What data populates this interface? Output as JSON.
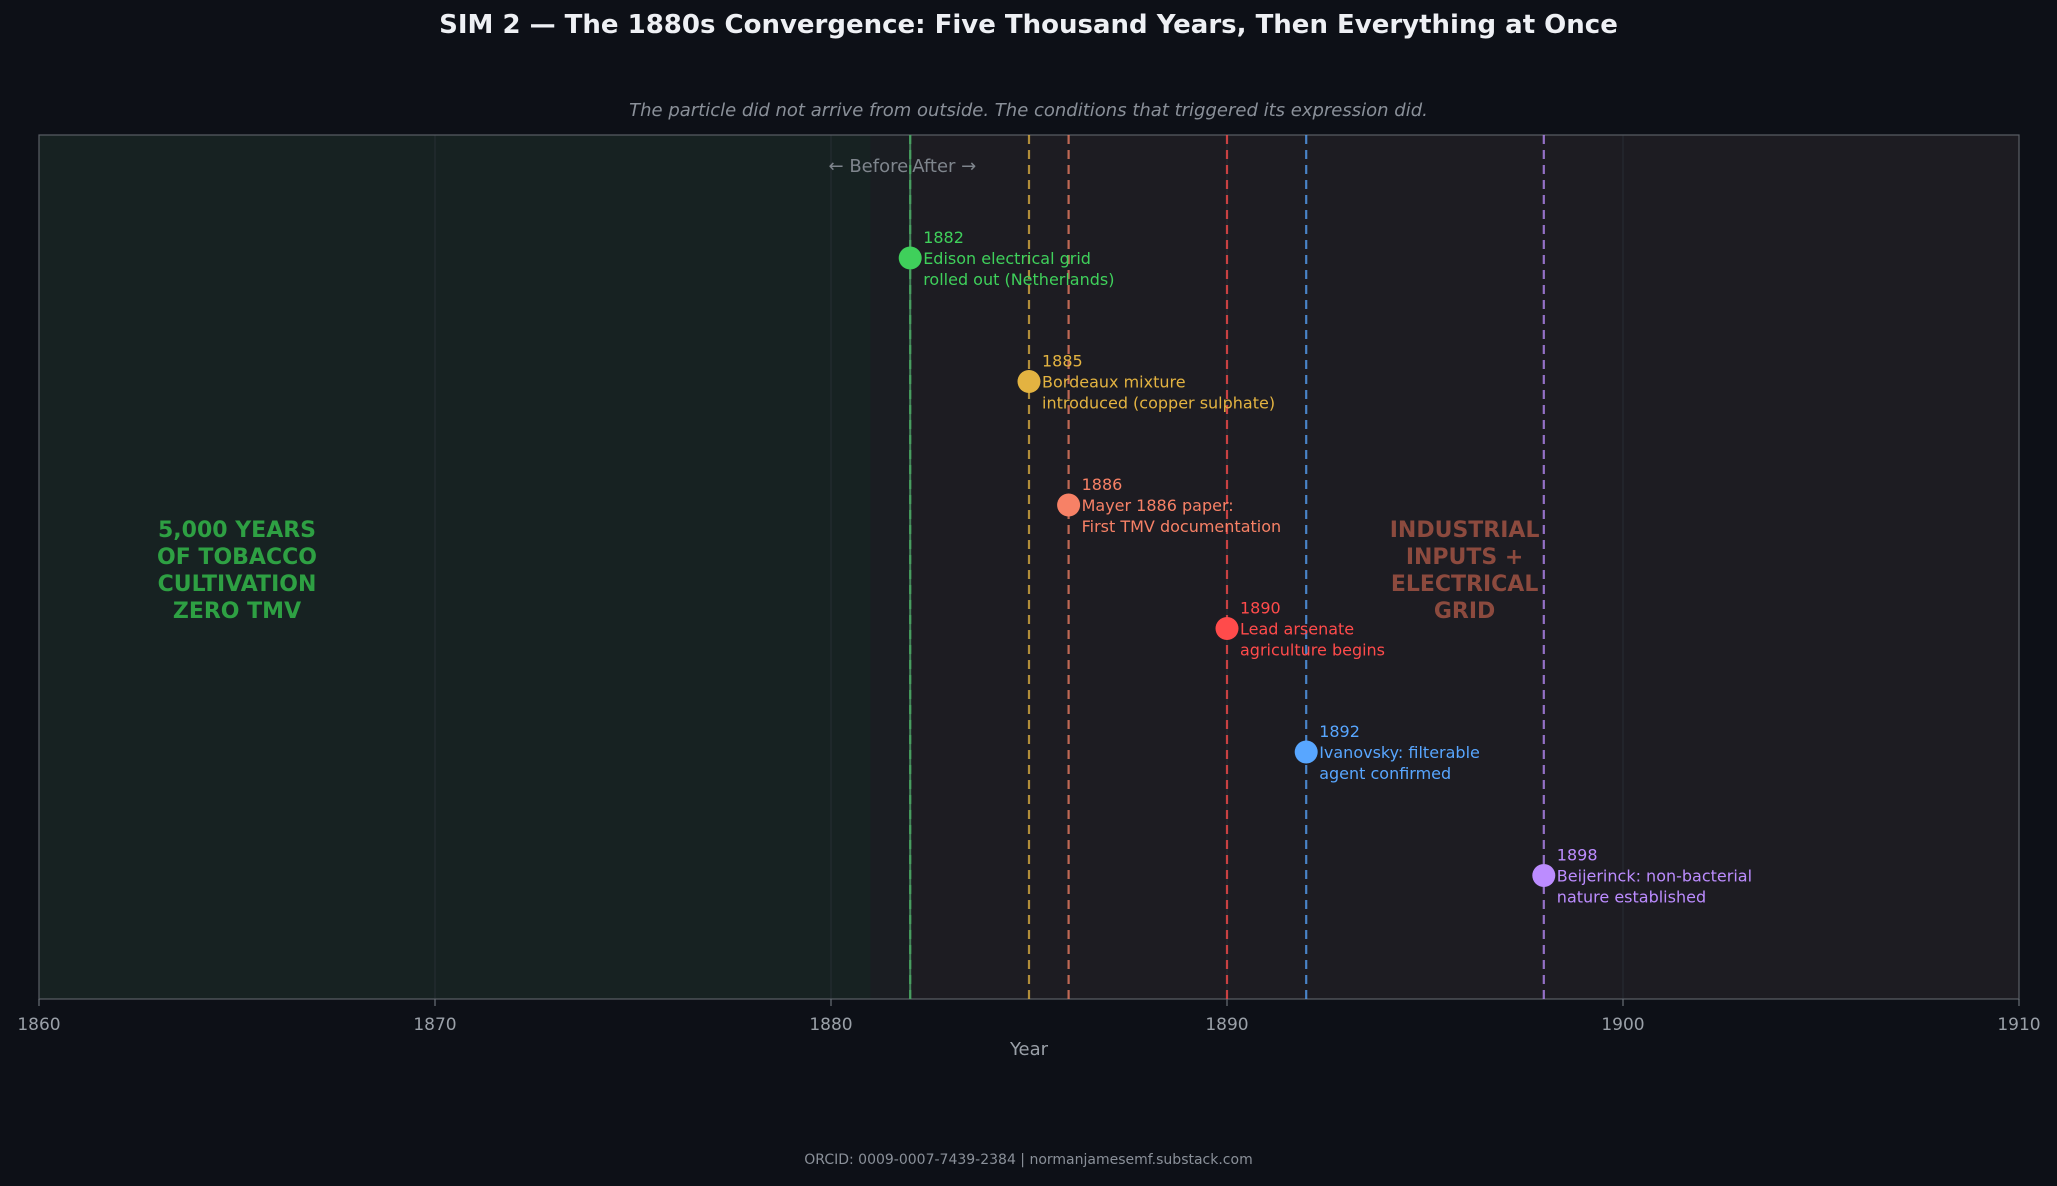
{
  "header": {
    "title": "SIM 2 — The 1880s Convergence: Five Thousand Years, Then Everything at Once",
    "subtitle": "The particle did not arrive from outside. The conditions that triggered its expression did."
  },
  "footer": {
    "text": "ORCID: 0009-0007-7439-2384  |  normanjamesemf.substack.com"
  },
  "colors": {
    "background": "#0d1017",
    "plot_background": "#1d1c22",
    "before_region": "#172222",
    "before_text": "#2ea043",
    "after_text": "#8c4a3e"
  },
  "chart_data": {
    "type": "scatter",
    "xlabel": "Year",
    "ylabel": "",
    "xlim": [
      1860,
      1910
    ],
    "x_ticks": [
      "1860",
      "1870",
      "1880",
      "1890",
      "1900",
      "1910"
    ],
    "grid": true,
    "divider": {
      "year": 1882,
      "before_label": "← Before",
      "after_label": "After →"
    },
    "regions": [
      {
        "start": 1860,
        "end": 1881,
        "label_lines": [
          "5,000 YEARS",
          "OF TOBACCO",
          "CULTIVATION",
          "ZERO TMV"
        ]
      },
      {
        "start": 1881,
        "end": 1910,
        "label_lines": [
          "INDUSTRIAL",
          "INPUTS +",
          "ELECTRICAL",
          "GRID"
        ]
      }
    ],
    "events": [
      {
        "year": 1882,
        "year_label": "1882",
        "lines": [
          "Edison electrical grid",
          "rolled out (Netherlands)"
        ],
        "color": "#3fd05b"
      },
      {
        "year": 1885,
        "year_label": "1885",
        "lines": [
          "Bordeaux mixture",
          "introduced (copper sulphate)"
        ],
        "color": "#e3b341"
      },
      {
        "year": 1886,
        "year_label": "1886",
        "lines": [
          "Mayer 1886 paper:",
          "First TMV documentation"
        ],
        "color": "#f78166"
      },
      {
        "year": 1890,
        "year_label": "1890",
        "lines": [
          "Lead arsenate",
          "agriculture begins"
        ],
        "color": "#ff4b4b"
      },
      {
        "year": 1892,
        "year_label": "1892",
        "lines": [
          "Ivanovsky: filterable",
          "agent confirmed"
        ],
        "color": "#58a6ff"
      },
      {
        "year": 1898,
        "year_label": "1898",
        "lines": [
          "Beijerinck: non-bacterial",
          "nature established"
        ],
        "color": "#bc8cff"
      }
    ]
  }
}
